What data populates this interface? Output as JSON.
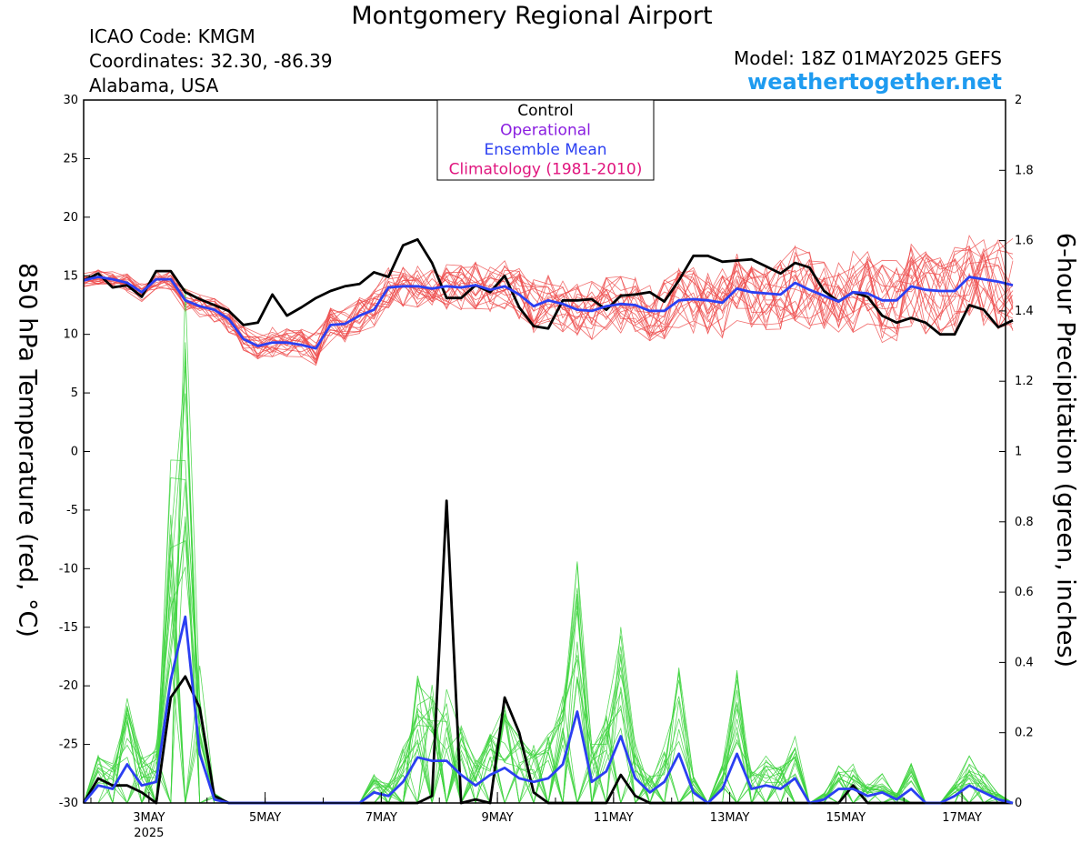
{
  "header": {
    "title": "Montgomery Regional Airport",
    "icao": "ICAO Code: KMGM",
    "coordinates": "Coordinates: 32.30, -86.39",
    "region": "Alabama, USA",
    "model": "Model: 18Z 01MAY2025 GEFS",
    "website": "weathertogether.net"
  },
  "chart_data": {
    "type": "line",
    "title": "Montgomery Regional Airport",
    "y_left_label": "850 hPa Temperature (red, °C)",
    "y_right_label": "6-hour Precipitation (green, inches)",
    "y_left_range": [
      -30,
      30
    ],
    "y_left_ticks": [
      "30",
      "25",
      "20",
      "15",
      "10",
      "5",
      "0",
      "-5",
      "-10",
      "-15",
      "-20",
      "-25",
      "-30"
    ],
    "y_right_range": [
      0,
      2
    ],
    "y_right_ticks": [
      "2",
      "1.8",
      "1.6",
      "1.4",
      "1.2",
      "1",
      "0.8",
      "0.6",
      "0.4",
      "0.2",
      "0"
    ],
    "x_range_days": [
      1.875,
      17.75
    ],
    "x_ticks": [
      {
        "day": 3,
        "label": "3MAY",
        "sub": "2025"
      },
      {
        "day": 5,
        "label": "5MAY"
      },
      {
        "day": 7,
        "label": "7MAY"
      },
      {
        "day": 9,
        "label": "9MAY"
      },
      {
        "day": 11,
        "label": "11MAY"
      },
      {
        "day": 13,
        "label": "13MAY"
      },
      {
        "day": 15,
        "label": "15MAY"
      },
      {
        "day": 17,
        "label": "17MAY"
      }
    ],
    "time_step_hours": 6,
    "legend": {
      "placement": "top-center",
      "entries": [
        {
          "label": "Control",
          "color": "#000000"
        },
        {
          "label": "Operational",
          "color": "#8a1ee0"
        },
        {
          "label": "Ensemble Mean",
          "color": "#2b3ff2"
        },
        {
          "label": "Climatology (1981-2010)",
          "color": "#e0157e"
        }
      ]
    },
    "colors": {
      "temperature_members": "#ee4a4a",
      "precip_members": "#3ed43e",
      "control": "#000000",
      "ensemble_mean": "#2b3ff2"
    },
    "series": [
      {
        "name": "Control",
        "variable": "temperature",
        "values": [
          14.6,
          15.2,
          14.0,
          14.2,
          13.2,
          15.4,
          15.4,
          13.6,
          13.0,
          12.5,
          12.0,
          10.8,
          11.0,
          13.4,
          11.6,
          12.3,
          13.1,
          13.7,
          14.1,
          14.3,
          15.3,
          14.9,
          17.6,
          18.1,
          16.1,
          13.1,
          13.1,
          14.2,
          13.6,
          15.0,
          12.3,
          10.7,
          10.5,
          12.9,
          12.9,
          13.0,
          12.1,
          13.3,
          13.4,
          13.6,
          12.8,
          14.6,
          16.7,
          16.7,
          16.2,
          16.3,
          16.4,
          15.8,
          15.2,
          16.1,
          15.7,
          13.7,
          12.8,
          13.6,
          13.2,
          11.6,
          11.0,
          11.4,
          11.0,
          10.0,
          10.0,
          12.5,
          12.1,
          10.6,
          11.2
        ]
      },
      {
        "name": "Ensemble Mean",
        "variable": "temperature",
        "values": [
          14.6,
          14.9,
          14.7,
          14.4,
          13.6,
          14.7,
          14.7,
          12.9,
          12.4,
          12.1,
          11.3,
          9.6,
          9.0,
          9.3,
          9.3,
          9.1,
          8.8,
          10.8,
          10.9,
          11.6,
          12.1,
          14.0,
          14.1,
          14.1,
          13.9,
          14.1,
          14.0,
          14.2,
          13.8,
          14.1,
          13.4,
          12.4,
          12.9,
          12.6,
          12.1,
          12.0,
          12.4,
          12.6,
          12.5,
          12.0,
          12.0,
          12.9,
          13.0,
          12.9,
          12.7,
          13.9,
          13.6,
          13.5,
          13.4,
          14.4,
          13.8,
          13.3,
          12.8,
          13.6,
          13.5,
          12.9,
          12.9,
          14.1,
          13.8,
          13.7,
          13.7,
          14.9,
          14.7,
          14.5,
          14.2
        ]
      },
      {
        "name": "Control",
        "variable": "precipitation",
        "values": [
          0,
          0.07,
          0.05,
          0.05,
          0.03,
          0,
          0.3,
          0.36,
          0.27,
          0.02,
          0,
          0,
          0,
          0,
          0,
          0,
          0,
          0,
          0,
          0,
          0,
          0,
          0,
          0,
          0.02,
          0.86,
          0,
          0.01,
          0,
          0.3,
          0.2,
          0.03,
          0,
          0,
          0,
          0,
          0,
          0.08,
          0.02,
          0,
          0,
          0,
          0,
          0,
          0,
          0,
          0,
          0,
          0,
          0,
          0,
          0,
          0,
          0.05,
          0,
          0,
          0,
          0,
          0,
          0,
          0,
          0,
          0,
          0,
          0
        ]
      },
      {
        "name": "Ensemble Mean",
        "variable": "precipitation",
        "values": [
          0,
          0.05,
          0.04,
          0.11,
          0.05,
          0.06,
          0.35,
          0.53,
          0.14,
          0.01,
          0,
          0,
          0,
          0,
          0,
          0,
          0,
          0,
          0,
          0,
          0.03,
          0.02,
          0.06,
          0.13,
          0.12,
          0.12,
          0.08,
          0.05,
          0.08,
          0.1,
          0.07,
          0.06,
          0.07,
          0.11,
          0.26,
          0.06,
          0.09,
          0.19,
          0.07,
          0.03,
          0.06,
          0.14,
          0.03,
          0,
          0.04,
          0.14,
          0.04,
          0.05,
          0.04,
          0.07,
          0,
          0.01,
          0.04,
          0.04,
          0.02,
          0.03,
          0.01,
          0.04,
          0,
          0,
          0.02,
          0.05,
          0.03,
          0.01,
          0
        ]
      }
    ]
  }
}
